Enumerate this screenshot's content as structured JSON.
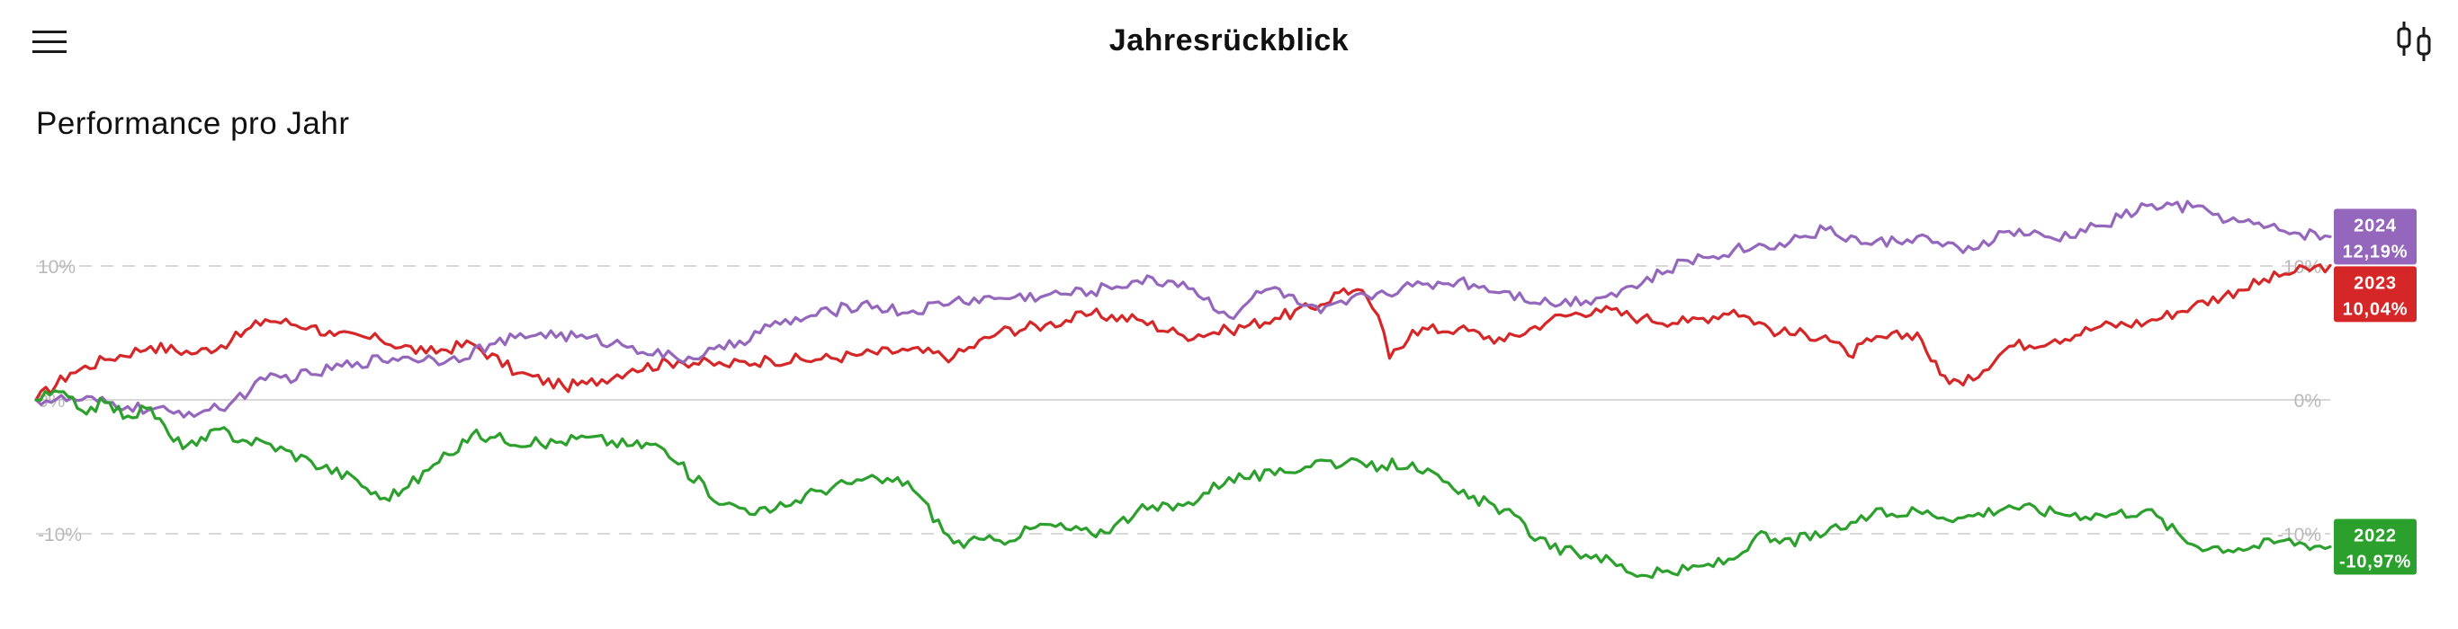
{
  "header": {
    "title": "Jahresrückblick",
    "menu_icon": "hamburger-menu-icon",
    "chart_type_icon": "candlestick-icon"
  },
  "section": {
    "title": "Performance pro Jahr"
  },
  "colors": {
    "2024": "#9467bd",
    "2023": "#d62728",
    "2022": "#2ca02c",
    "grid": "#d8d8d8",
    "tick": "#b8b8b8"
  },
  "chart_data": {
    "type": "line",
    "title": "Performance pro Jahr",
    "xlabel": "",
    "ylabel": "",
    "ylim": [
      -13,
      15
    ],
    "yticks": [
      {
        "value": 10,
        "label": "10%"
      },
      {
        "value": 0,
        "label": "0%"
      },
      {
        "value": -10,
        "label": "-10%"
      }
    ],
    "grid": true,
    "legend": "end-of-line tags at right",
    "x_domain": [
      0,
      100
    ],
    "series": [
      {
        "name": "2023",
        "color": "#d62728",
        "end_label": "10,04%",
        "x": [
          0,
          1.5,
          3,
          5,
          7,
          8.5,
          10,
          12,
          13,
          15,
          17,
          19,
          21,
          23,
          24,
          26,
          28,
          30,
          32,
          34,
          36,
          38,
          40,
          42,
          44,
          46,
          48,
          50,
          52,
          54,
          56,
          57,
          58,
          58.5,
          59,
          60,
          62,
          64,
          66,
          68,
          70,
          72,
          74,
          76,
          78,
          79,
          80,
          82,
          83,
          84,
          86,
          88,
          90,
          92,
          94,
          96,
          98,
          100
        ],
        "values": [
          0,
          2.0,
          3.0,
          4.0,
          3.5,
          4.4,
          6.0,
          5.5,
          4.8,
          4.5,
          3.5,
          4.2,
          2.0,
          1.0,
          1.2,
          2.3,
          2.9,
          2.6,
          3.0,
          3.0,
          3.4,
          3.7,
          3.2,
          5.1,
          5.6,
          6.4,
          6.0,
          4.8,
          5.2,
          6.1,
          7.1,
          8.3,
          7.7,
          6.3,
          3.1,
          5.2,
          5.3,
          4.4,
          6.0,
          6.8,
          6.1,
          5.8,
          6.7,
          5.0,
          4.8,
          3.3,
          4.4,
          5.0,
          1.9,
          1.1,
          4.0,
          4.5,
          5.5,
          5.8,
          7.0,
          8.2,
          9.4,
          10.04
        ]
      },
      {
        "name": "2024",
        "color": "#9467bd",
        "end_label": "12,19%",
        "x": [
          0,
          2,
          4,
          6,
          8,
          10,
          12,
          14,
          16,
          18,
          20,
          22,
          24,
          26,
          28,
          30,
          32,
          34,
          36,
          38,
          40,
          42,
          44,
          46,
          48,
          50,
          52,
          53,
          54,
          55,
          56,
          58,
          60,
          62,
          64,
          66,
          68,
          70,
          72,
          74,
          76,
          78,
          80,
          82,
          84,
          86,
          88,
          90,
          92,
          94,
          96,
          98,
          100
        ],
        "values": [
          0,
          0.0,
          -0.5,
          -1.0,
          -0.7,
          1.5,
          1.9,
          2.8,
          3.2,
          3.0,
          4.2,
          5.0,
          4.6,
          4.0,
          3.0,
          3.8,
          5.5,
          6.3,
          7.2,
          6.5,
          7.4,
          7.6,
          7.8,
          8.1,
          8.9,
          8.8,
          6.2,
          7.6,
          8.4,
          7.2,
          6.5,
          7.8,
          8.5,
          8.9,
          8.1,
          7.2,
          7.6,
          8.7,
          10.4,
          11.2,
          11.7,
          12.7,
          11.6,
          12.2,
          11.0,
          12.6,
          12.0,
          13.0,
          14.5,
          14.4,
          13.3,
          12.6,
          12.19
        ]
      },
      {
        "name": "2022",
        "color": "#2ca02c",
        "end_label": "-10,97%",
        "x": [
          0,
          1,
          2,
          3,
          4,
          5,
          6,
          7,
          8,
          9,
          10,
          12,
          14,
          15,
          16,
          18,
          19,
          20,
          22,
          24,
          26,
          27,
          28,
          30,
          32,
          34,
          36,
          38,
          40,
          42,
          44,
          46,
          47,
          48,
          50,
          52,
          54,
          56,
          58,
          60,
          62,
          64,
          66,
          68,
          70,
          72,
          74,
          75,
          76,
          78,
          80,
          82,
          84,
          86,
          88,
          90,
          92,
          94,
          96,
          98,
          100
        ],
        "values": [
          0,
          0.6,
          -0.8,
          -0.2,
          -1.2,
          -0.6,
          -3.1,
          -3.4,
          -2.2,
          -3.0,
          -3.2,
          -4.6,
          -6.0,
          -7.4,
          -6.7,
          -4.1,
          -2.6,
          -2.8,
          -3.3,
          -2.8,
          -3.4,
          -3.3,
          -4.8,
          -7.8,
          -8.4,
          -6.8,
          -6.0,
          -6.1,
          -10.7,
          -10.5,
          -9.3,
          -10.0,
          -9.4,
          -8.3,
          -7.9,
          -5.8,
          -5.6,
          -4.5,
          -5.0,
          -4.7,
          -7.0,
          -8.2,
          -11.1,
          -11.6,
          -13.1,
          -12.7,
          -11.9,
          -10.1,
          -10.7,
          -10.0,
          -8.6,
          -8.3,
          -8.8,
          -7.9,
          -8.4,
          -8.6,
          -8.2,
          -10.8,
          -11.1,
          -10.5,
          -10.97
        ]
      }
    ]
  }
}
